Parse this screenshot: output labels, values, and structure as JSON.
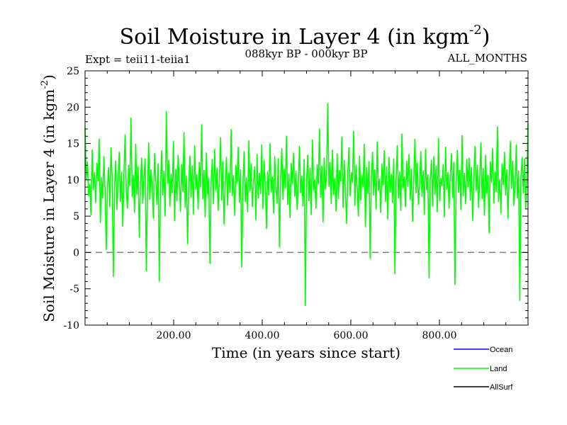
{
  "chart_data": {
    "type": "line",
    "title_main": "Soil Moisture in Layer 4 (in kgm",
    "title_sup": "-2",
    "title_close": ")",
    "experiment": "Expt = teii11-teiia1",
    "period": "088kyr BP - 000kyr BP",
    "months": "ALL_MONTHS",
    "xlabel": "Time (in years since start)",
    "ylabel_main": "Soil Moisture in Layer 4 (in kgm",
    "ylabel_sup": "-2",
    "ylabel_close": ")",
    "xlim": [
      0,
      1000
    ],
    "ylim": [
      -10,
      25
    ],
    "xticks": [
      200,
      400,
      600,
      800
    ],
    "xtick_labels": [
      "200.00",
      "400.00",
      "600.00",
      "800.00"
    ],
    "yticks": [
      -10,
      -5,
      0,
      5,
      10,
      15,
      20,
      25
    ],
    "ytick_labels": [
      "-10",
      "-5",
      "0",
      "5",
      "10",
      "15",
      "20",
      "25"
    ],
    "reference_line": {
      "y": 0,
      "style": "dashed",
      "color": "#808080"
    },
    "series": [
      {
        "name": "Ocean",
        "color": "#0000ff",
        "values": []
      },
      {
        "name": "Land",
        "color": "#00ff00",
        "x_start": 0,
        "x_end": 1000,
        "values": [
          17.2,
          10.1,
          12.5,
          7.8,
          9.4,
          5.2,
          14.1,
          8.6,
          11.0,
          6.9,
          12.3,
          9.8,
          15.6,
          4.1,
          10.3,
          7.5,
          13.2,
          8.1,
          0.4,
          9.0,
          11.7,
          6.3,
          14.4,
          10.2,
          -3.3,
          8.8,
          12.6,
          5.9,
          9.7,
          13.8,
          7.0,
          11.1,
          3.6,
          10.9,
          16.2,
          8.3,
          6.1,
          12.0,
          9.2,
          18.5,
          7.7,
          10.6,
          5.5,
          14.9,
          8.0,
          11.8,
          2.1,
          9.6,
          13.0,
          6.8,
          10.4,
          12.9,
          -2.5,
          8.5,
          15.1,
          7.3,
          11.4,
          9.1,
          4.7,
          13.6,
          10.0,
          6.6,
          12.2,
          -3.9,
          8.9,
          14.0,
          7.9,
          11.2,
          5.0,
          19.4,
          9.5,
          12.7,
          6.4,
          10.8,
          8.2,
          15.3,
          4.4,
          11.5,
          7.1,
          13.4,
          9.9,
          5.7,
          12.1,
          8.4,
          16.5,
          6.2,
          10.5,
          1.2,
          9.3,
          13.3,
          7.6,
          11.9,
          5.3,
          14.7,
          8.7,
          10.7,
          6.0,
          12.4,
          9.0,
          17.6,
          7.4,
          11.3,
          4.9,
          13.7,
          8.0,
          10.2,
          -1.5,
          9.8,
          12.8,
          6.7,
          14.2,
          8.6,
          11.6,
          5.8,
          10.0,
          15.8,
          7.2,
          12.5,
          3.9,
          9.4,
          13.1,
          6.5,
          11.0,
          8.3,
          16.9,
          7.8,
          10.6,
          5.1,
          12.0,
          9.6,
          14.5,
          6.9,
          11.4,
          -2.0,
          8.8,
          13.9,
          7.0,
          10.3,
          5.6,
          15.4,
          8.5,
          12.2,
          6.3,
          9.7,
          11.8,
          4.5,
          13.5,
          7.5,
          10.9,
          8.1,
          14.8,
          6.0,
          12.6,
          9.2,
          3.3,
          11.1,
          7.9,
          15.0,
          8.4,
          10.4,
          5.4,
          13.2,
          9.0,
          6.8,
          12.9,
          0.8,
          10.1,
          14.3,
          7.3,
          11.5,
          8.9,
          16.0,
          6.6,
          10.8,
          4.8,
          12.3,
          9.5,
          13.7,
          7.7,
          11.2,
          5.9,
          9.3,
          14.6,
          8.2,
          10.5,
          6.4,
          12.8,
          -7.3,
          9.9,
          13.4,
          7.1,
          11.6,
          5.2,
          15.5,
          8.6,
          10.0,
          6.1,
          12.1,
          9.4,
          17.0,
          7.6,
          11.9,
          4.2,
          13.0,
          8.7,
          10.7,
          20.5,
          9.1,
          12.4,
          6.7,
          14.1,
          8.0,
          10.2,
          5.7,
          13.6,
          7.4,
          11.3,
          9.8,
          15.9,
          6.2,
          12.7,
          8.3,
          4.0,
          10.9,
          14.4,
          7.8,
          11.0,
          9.6,
          16.7,
          6.5,
          12.0,
          8.8,
          5.0,
          13.3,
          7.2,
          10.6,
          9.0,
          14.9,
          3.5,
          11.7,
          8.1,
          12.5,
          -0.8,
          10.3,
          13.8,
          7.9,
          11.4,
          6.0,
          15.2,
          8.5,
          10.1,
          5.5,
          12.2,
          9.3,
          14.0,
          7.0,
          11.8,
          4.6,
          13.1,
          8.4,
          10.8,
          6.9,
          12.9,
          -2.9,
          9.7,
          14.7,
          7.5,
          11.1,
          5.8,
          16.3,
          8.9,
          10.4,
          6.3,
          12.6,
          9.1,
          13.5,
          7.3,
          11.5,
          4.3,
          10.0,
          15.6,
          8.2,
          12.3,
          6.6,
          9.5,
          13.9,
          7.7,
          11.2,
          5.3,
          14.2,
          8.6,
          10.7,
          -3.5,
          9.9,
          12.7,
          6.4,
          13.2,
          8.0,
          11.9,
          5.6,
          15.7,
          7.1,
          10.2,
          9.2,
          12.1,
          4.9,
          14.5,
          8.7,
          11.0,
          6.1,
          10.5,
          13.6,
          7.6,
          12.4,
          -4.4,
          9.4,
          14.1,
          8.3,
          11.3,
          5.9,
          16.1,
          7.8,
          10.9,
          6.7,
          12.8,
          9.0,
          13.0,
          7.2,
          11.7,
          4.4,
          10.3,
          14.6,
          8.5,
          12.0,
          6.2,
          9.8,
          15.1,
          7.4,
          11.6,
          5.1,
          13.4,
          8.1,
          10.6,
          2.7,
          12.5,
          9.6,
          14.3,
          6.8,
          11.1,
          8.4,
          17.3,
          7.0,
          10.0,
          5.4,
          12.2,
          9.3,
          13.8,
          7.9,
          11.4,
          4.7,
          10.8,
          15.3,
          8.8,
          12.6,
          6.5,
          9.1,
          14.8,
          7.5,
          11.2,
          -6.6,
          10.4,
          13.1,
          8.2,
          12.9,
          6.0,
          9.7,
          17.8
        ]
      },
      {
        "name": "AllSurf",
        "color": "#000000",
        "values": []
      }
    ],
    "legend": {
      "position": "bottom-right",
      "entries": [
        "Ocean",
        "Land",
        "AllSurf"
      ]
    },
    "grid": false
  }
}
